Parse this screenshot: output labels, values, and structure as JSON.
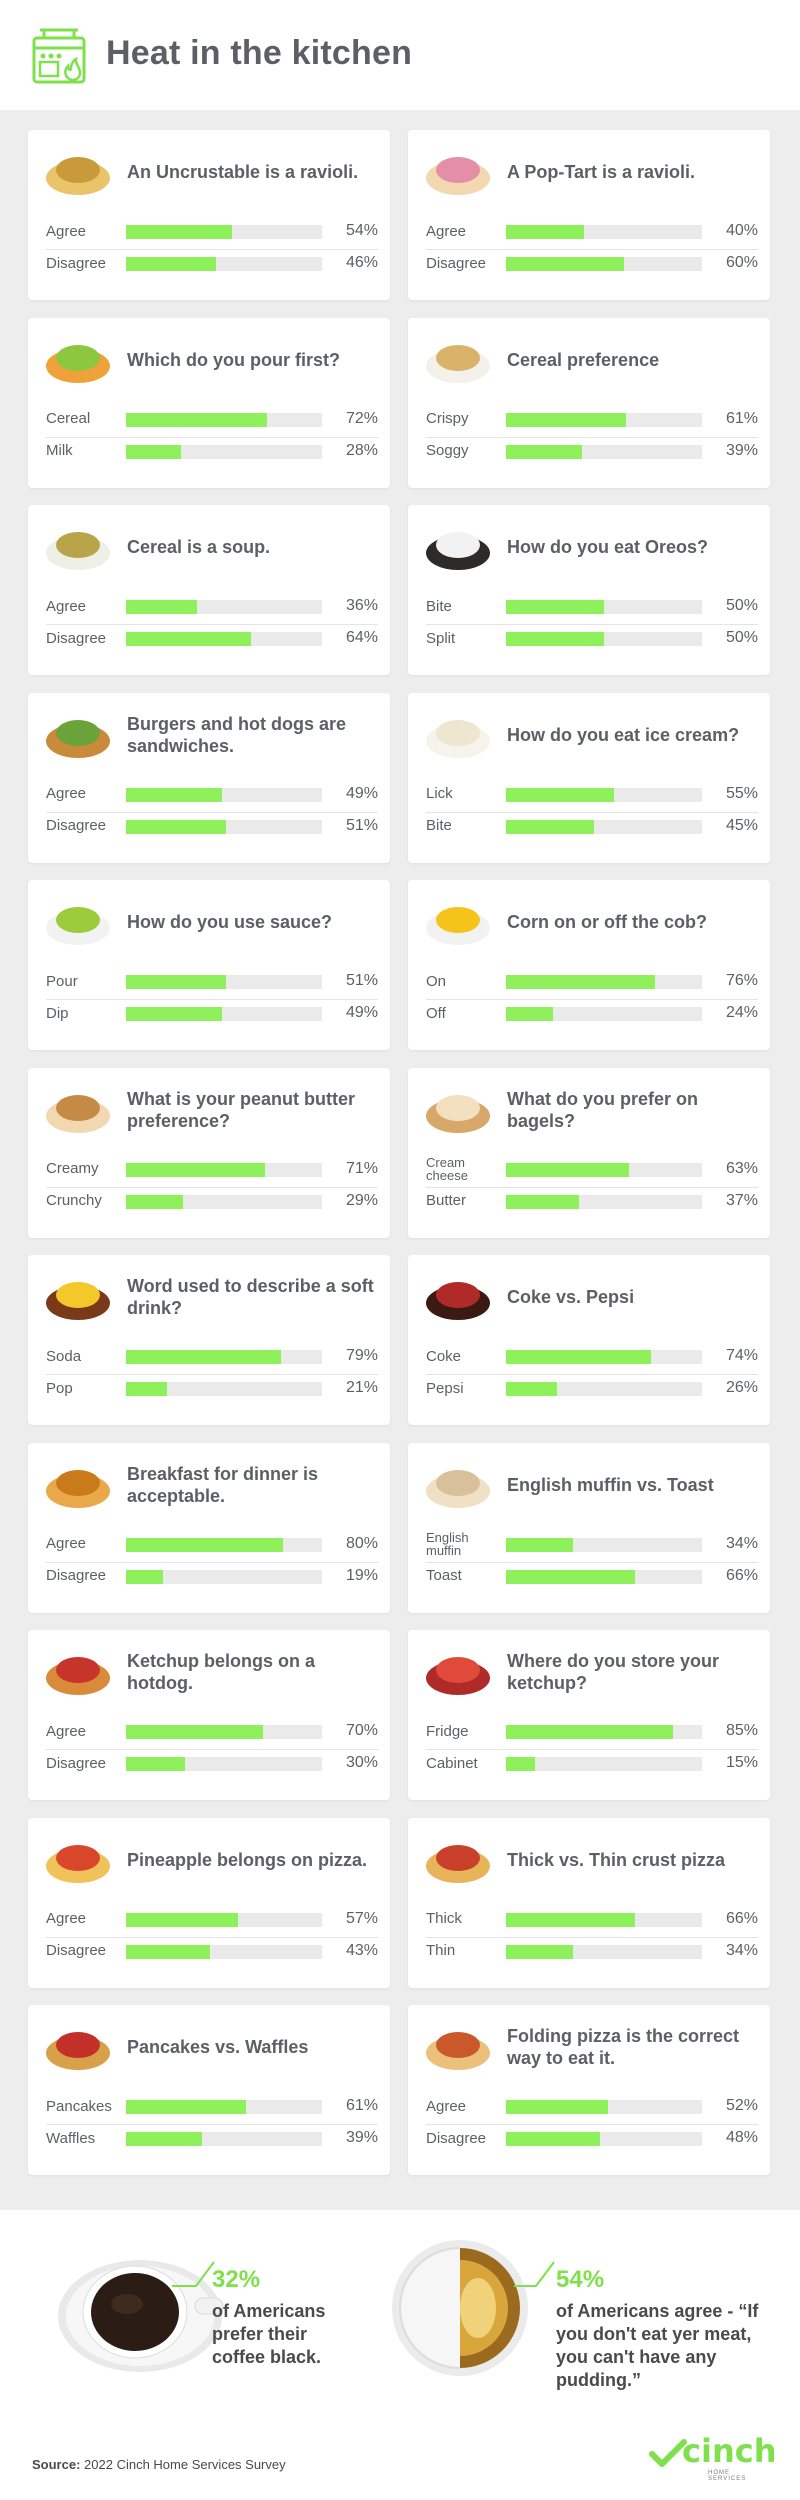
{
  "header": {
    "title": "Heat in the kitchen",
    "icon": "stove-flame-icon"
  },
  "chart_data": [
    {
      "type": "bar",
      "title": "An Uncrustable is a ravioli.",
      "icon": "ravioli-icon",
      "categories": [
        "Agree",
        "Disagree"
      ],
      "values": [
        54,
        46
      ],
      "labels": [
        "54%",
        "46%"
      ]
    },
    {
      "type": "bar",
      "title": "A Pop-Tart is a ravioli.",
      "icon": "pop-tart-icon",
      "categories": [
        "Agree",
        "Disagree"
      ],
      "values": [
        40,
        60
      ],
      "labels": [
        "40%",
        "60%"
      ]
    },
    {
      "type": "bar",
      "title": "Which do you pour first?",
      "icon": "cereal-loops-icon",
      "categories": [
        "Cereal",
        "Milk"
      ],
      "values": [
        72,
        28
      ],
      "labels": [
        "72%",
        "28%"
      ]
    },
    {
      "type": "bar",
      "title": "Cereal preference",
      "icon": "cereal-bowl-icon",
      "categories": [
        "Crispy",
        "Soggy"
      ],
      "values": [
        61,
        39
      ],
      "labels": [
        "61%",
        "39%"
      ]
    },
    {
      "type": "bar",
      "title": "Cereal is a soup.",
      "icon": "soup-bowl-icon",
      "categories": [
        "Agree",
        "Disagree"
      ],
      "values": [
        36,
        64
      ],
      "labels": [
        "36%",
        "64%"
      ]
    },
    {
      "type": "bar",
      "title": "How do you eat Oreos?",
      "icon": "oreo-icon",
      "categories": [
        "Bite",
        "Split"
      ],
      "values": [
        50,
        50
      ],
      "labels": [
        "50%",
        "50%"
      ]
    },
    {
      "type": "bar",
      "title": "Burgers and hot dogs are sandwiches.",
      "icon": "burger-icon",
      "categories": [
        "Agree",
        "Disagree"
      ],
      "values": [
        49,
        51
      ],
      "labels": [
        "49%",
        "51%"
      ]
    },
    {
      "type": "bar",
      "title": "How do you eat ice cream?",
      "icon": "ice-cream-bowl-icon",
      "categories": [
        "Lick",
        "Bite"
      ],
      "values": [
        55,
        45
      ],
      "labels": [
        "55%",
        "45%"
      ]
    },
    {
      "type": "bar",
      "title": "How do you use sauce?",
      "icon": "sauce-bowl-icon",
      "categories": [
        "Pour",
        "Dip"
      ],
      "values": [
        51,
        49
      ],
      "labels": [
        "51%",
        "49%"
      ]
    },
    {
      "type": "bar",
      "title": "Corn on or off the cob?",
      "icon": "corn-bowl-icon",
      "categories": [
        "On",
        "Off"
      ],
      "values": [
        76,
        24
      ],
      "labels": [
        "76%",
        "24%"
      ]
    },
    {
      "type": "bar",
      "title": "What is your peanut butter preference?",
      "icon": "peanut-butter-icon",
      "categories": [
        "Creamy",
        "Crunchy"
      ],
      "values": [
        71,
        29
      ],
      "labels": [
        "71%",
        "29%"
      ]
    },
    {
      "type": "bar",
      "title": "What do you prefer on bagels?",
      "icon": "bagel-icon",
      "categories": [
        "Cream cheese",
        "Butter"
      ],
      "values": [
        63,
        37
      ],
      "labels": [
        "63%",
        "37%"
      ]
    },
    {
      "type": "bar",
      "title": "Word used to describe a soft drink?",
      "icon": "soft-drink-icon",
      "categories": [
        "Soda",
        "Pop"
      ],
      "values": [
        79,
        21
      ],
      "labels": [
        "79%",
        "21%"
      ]
    },
    {
      "type": "bar",
      "title": "Coke vs. Pepsi",
      "icon": "cola-glass-icon",
      "categories": [
        "Coke",
        "Pepsi"
      ],
      "values": [
        74,
        26
      ],
      "labels": [
        "74%",
        "26%"
      ]
    },
    {
      "type": "bar",
      "title": "Breakfast for dinner is acceptable.",
      "icon": "pancakes-icon",
      "categories": [
        "Agree",
        "Disagree"
      ],
      "values": [
        80,
        19
      ],
      "labels": [
        "80%",
        "19%"
      ]
    },
    {
      "type": "bar",
      "title": "English muffin vs. Toast",
      "icon": "english-muffin-icon",
      "categories": [
        "English muffin",
        "Toast"
      ],
      "values": [
        34,
        66
      ],
      "labels": [
        "34%",
        "66%"
      ]
    },
    {
      "type": "bar",
      "title": "Ketchup belongs on a hotdog.",
      "icon": "hotdog-icon",
      "categories": [
        "Agree",
        "Disagree"
      ],
      "values": [
        70,
        30
      ],
      "labels": [
        "70%",
        "30%"
      ]
    },
    {
      "type": "bar",
      "title": "Where do you store your ketchup?",
      "icon": "ketchup-bottle-icon",
      "categories": [
        "Fridge",
        "Cabinet"
      ],
      "values": [
        85,
        15
      ],
      "labels": [
        "85%",
        "15%"
      ]
    },
    {
      "type": "bar",
      "title": "Pineapple belongs on pizza.",
      "icon": "pizza-slice-icon",
      "categories": [
        "Agree",
        "Disagree"
      ],
      "values": [
        57,
        43
      ],
      "labels": [
        "57%",
        "43%"
      ]
    },
    {
      "type": "bar",
      "title": "Thick vs. Thin crust pizza",
      "icon": "pizza-icon",
      "categories": [
        "Thick",
        "Thin"
      ],
      "values": [
        66,
        34
      ],
      "labels": [
        "66%",
        "34%"
      ]
    },
    {
      "type": "bar",
      "title": "Pancakes vs. Waffles",
      "icon": "waffles-icon",
      "categories": [
        "Pancakes",
        "Waffles"
      ],
      "values": [
        61,
        39
      ],
      "labels": [
        "61%",
        "39%"
      ]
    },
    {
      "type": "bar",
      "title": "Folding pizza is the correct way to eat it.",
      "icon": "folded-pizza-icon",
      "categories": [
        "Agree",
        "Disagree"
      ],
      "values": [
        52,
        48
      ],
      "labels": [
        "52%",
        "48%"
      ]
    }
  ],
  "stats": {
    "coffee": {
      "pct": "32%",
      "text": "of Americans prefer their coffee black."
    },
    "pudding": {
      "pct": "54%",
      "text": "of Americans agree - “If you don't eat yer meat, you can't have any pudding.”"
    }
  },
  "footer": {
    "source_label": "Source:",
    "source_text": "2022 Cinch Home Services Survey",
    "brand_name": "cinch",
    "brand_sub": "HOME SERVICES"
  },
  "colors": {
    "accent": "#8ef05a",
    "track": "#eaeaea",
    "background": "#ededee",
    "text": "#5c5f66"
  }
}
